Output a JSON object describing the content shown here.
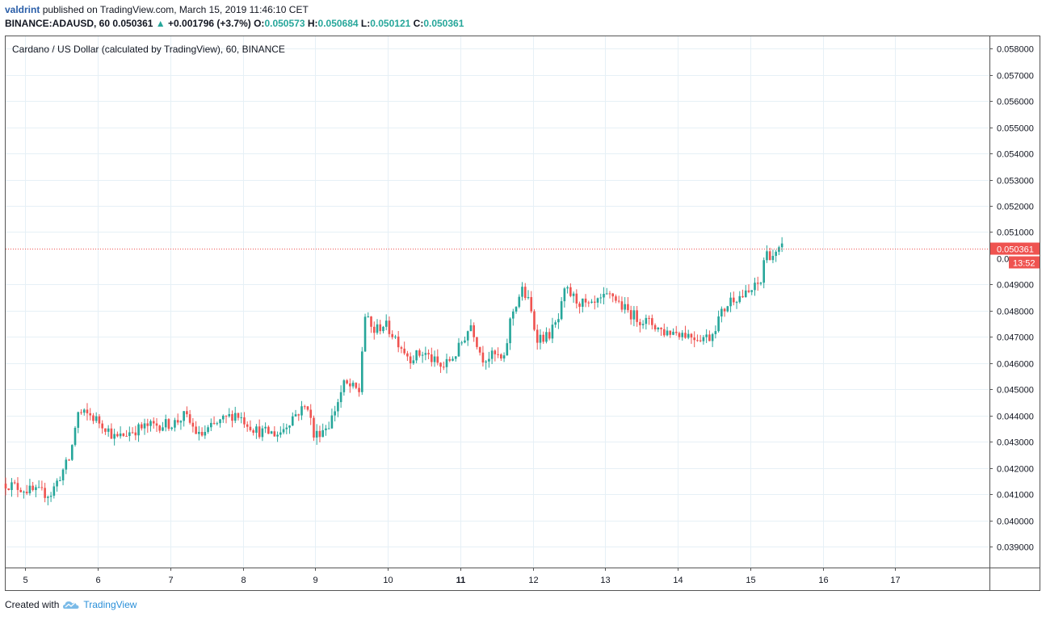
{
  "header": {
    "user": "valdrint",
    "published_text": "published on TradingView.com, March 15, 2019 11:46:10 CET",
    "symbol": "BINANCE:ADAUSD, 60",
    "last": "0.050361",
    "change": "+0.001796 (+3.7%)",
    "open_label": "O:",
    "open": "0.050573",
    "high_label": "H:",
    "high": "0.050684",
    "low_label": "L:",
    "low": "0.050121",
    "close_label": "C:",
    "close": "0.050361"
  },
  "chart_data": {
    "type": "candlestick",
    "title": "Cardano / US Dollar (calculated by TradingView), 60, BINANCE",
    "ylim": [
      0.0382,
      0.0585
    ],
    "xlim": [
      4.73,
      18.3
    ],
    "y_ticks": [
      "0.058000",
      "0.057000",
      "0.056000",
      "0.055000",
      "0.054000",
      "0.053000",
      "0.052000",
      "0.051000",
      "0.049000",
      "0.048000",
      "0.047000",
      "0.046000",
      "0.045000",
      "0.044000",
      "0.043000",
      "0.042000",
      "0.041000",
      "0.040000",
      "0.039000"
    ],
    "x_ticks": [
      {
        "label": "5",
        "x": 5
      },
      {
        "label": "6",
        "x": 6
      },
      {
        "label": "7",
        "x": 7
      },
      {
        "label": "8",
        "x": 8
      },
      {
        "label": "9",
        "x": 9
      },
      {
        "label": "10",
        "x": 10
      },
      {
        "label": "11",
        "x": 11,
        "bold": true
      },
      {
        "label": "12",
        "x": 12
      },
      {
        "label": "13",
        "x": 13
      },
      {
        "label": "14",
        "x": 14
      },
      {
        "label": "15",
        "x": 15
      },
      {
        "label": "16",
        "x": 16
      },
      {
        "label": "17",
        "x": 17
      }
    ],
    "price_line": {
      "value": 0.050361,
      "label": "0.050361",
      "countdown": "13:52",
      "partial_tick": "0.0"
    },
    "price_path": [
      [
        4.73,
        0.0414
      ],
      [
        5.1,
        0.0411
      ],
      [
        5.35,
        0.041
      ],
      [
        5.5,
        0.0418
      ],
      [
        5.62,
        0.0424
      ],
      [
        5.72,
        0.0441
      ],
      [
        5.9,
        0.044
      ],
      [
        6.1,
        0.0436
      ],
      [
        6.25,
        0.0431
      ],
      [
        6.45,
        0.0434
      ],
      [
        6.7,
        0.0436
      ],
      [
        7.05,
        0.0437
      ],
      [
        7.2,
        0.044
      ],
      [
        7.4,
        0.0432
      ],
      [
        7.6,
        0.0436
      ],
      [
        7.9,
        0.0441
      ],
      [
        8.2,
        0.0434
      ],
      [
        8.5,
        0.0433
      ],
      [
        8.7,
        0.044
      ],
      [
        8.9,
        0.0444
      ],
      [
        8.98,
        0.0432
      ],
      [
        9.2,
        0.0437
      ],
      [
        9.4,
        0.0452
      ],
      [
        9.55,
        0.045
      ],
      [
        9.62,
        0.0449
      ],
      [
        9.67,
        0.0479
      ],
      [
        9.8,
        0.0472
      ],
      [
        9.95,
        0.0475
      ],
      [
        10.1,
        0.047
      ],
      [
        10.3,
        0.0462
      ],
      [
        10.5,
        0.0464
      ],
      [
        10.75,
        0.0458
      ],
      [
        10.95,
        0.0464
      ],
      [
        11.15,
        0.0475
      ],
      [
        11.3,
        0.0462
      ],
      [
        11.5,
        0.0463
      ],
      [
        11.6,
        0.046
      ],
      [
        11.7,
        0.0478
      ],
      [
        11.85,
        0.0488
      ],
      [
        11.95,
        0.0483
      ],
      [
        12.05,
        0.047
      ],
      [
        12.2,
        0.047
      ],
      [
        12.35,
        0.0476
      ],
      [
        12.45,
        0.0488
      ],
      [
        12.6,
        0.0484
      ],
      [
        12.8,
        0.0481
      ],
      [
        12.95,
        0.0484
      ],
      [
        13.1,
        0.0486
      ],
      [
        13.25,
        0.0481
      ],
      [
        13.45,
        0.0477
      ],
      [
        13.65,
        0.0475
      ],
      [
        13.8,
        0.0472
      ],
      [
        14.0,
        0.0472
      ],
      [
        14.25,
        0.047
      ],
      [
        14.45,
        0.047
      ],
      [
        14.58,
        0.0478
      ],
      [
        14.75,
        0.0485
      ],
      [
        14.95,
        0.0486
      ],
      [
        15.15,
        0.0491
      ],
      [
        15.2,
        0.0502
      ],
      [
        15.35,
        0.0501
      ],
      [
        15.45,
        0.0504
      ]
    ]
  },
  "footer": {
    "created_with": "Created with",
    "brand": "TradingView"
  },
  "colors": {
    "up": "#26a69a",
    "down": "#ef5350",
    "grid": "#e6f0f6",
    "axis": "#555555",
    "price": "#ef5350"
  },
  "icons": {
    "change_arrow": "triangle-up-icon",
    "brand_logo": "tradingview-cloud-icon"
  }
}
